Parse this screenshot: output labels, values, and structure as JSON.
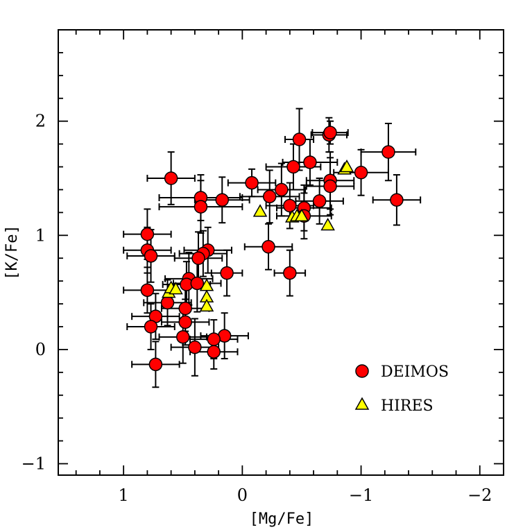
{
  "chart_data": {
    "type": "scatter",
    "title": "",
    "xlabel": "[Mg/Fe]",
    "ylabel": "[K/Fe]",
    "xlim": [
      1.55,
      -2.2
    ],
    "ylim": [
      -1.1,
      2.8
    ],
    "x_ticks": [
      1,
      0,
      -1,
      -2
    ],
    "x_tick_labels": [
      "1",
      "0",
      "−1",
      "−2"
    ],
    "y_ticks": [
      -1,
      0,
      1,
      2
    ],
    "y_tick_labels": [
      "−1",
      "0",
      "1",
      "2"
    ],
    "grid": false,
    "legend_position": "bottom-right",
    "series": [
      {
        "name": "DEIMOS",
        "marker": "circle",
        "color": "#ff0000",
        "points": [
          {
            "x": -0.73,
            "y": 1.88,
            "xerr": 0.15,
            "yerr": 0.15
          },
          {
            "x": -0.74,
            "y": 1.9,
            "xerr": 0.15,
            "yerr": 0.1
          },
          {
            "x": -0.48,
            "y": 1.84,
            "xerr": 0.12,
            "yerr": 0.27
          },
          {
            "x": -1.23,
            "y": 1.73,
            "xerr": 0.23,
            "yerr": 0.25
          },
          {
            "x": -0.57,
            "y": 1.64,
            "xerr": 0.23,
            "yerr": 0.2
          },
          {
            "x": -0.43,
            "y": 1.6,
            "xerr": 0.23,
            "yerr": 0.2
          },
          {
            "x": -1.0,
            "y": 1.55,
            "xerr": 0.23,
            "yerr": 0.2
          },
          {
            "x": -0.74,
            "y": 1.48,
            "xerr": 0.2,
            "yerr": 0.25
          },
          {
            "x": -0.74,
            "y": 1.43,
            "xerr": 0.2,
            "yerr": 0.25
          },
          {
            "x": 0.6,
            "y": 1.5,
            "xerr": 0.2,
            "yerr": 0.23
          },
          {
            "x": -0.08,
            "y": 1.46,
            "xerr": 0.2,
            "yerr": 0.12
          },
          {
            "x": -0.33,
            "y": 1.4,
            "xerr": 0.2,
            "yerr": 0.23
          },
          {
            "x": 0.35,
            "y": 1.33,
            "xerr": 0.35,
            "yerr": 0.2
          },
          {
            "x": -0.23,
            "y": 1.34,
            "xerr": 0.25,
            "yerr": 0.23
          },
          {
            "x": 0.17,
            "y": 1.31,
            "xerr": 0.23,
            "yerr": 0.2
          },
          {
            "x": -1.3,
            "y": 1.31,
            "xerr": 0.2,
            "yerr": 0.22
          },
          {
            "x": -0.65,
            "y": 1.3,
            "xerr": 0.2,
            "yerr": 0.2
          },
          {
            "x": -0.4,
            "y": 1.26,
            "xerr": 0.2,
            "yerr": 0.2
          },
          {
            "x": 0.35,
            "y": 1.25,
            "xerr": 0.35,
            "yerr": 0.23
          },
          {
            "x": -0.52,
            "y": 1.24,
            "xerr": 0.23,
            "yerr": 0.2
          },
          {
            "x": -0.52,
            "y": 1.17,
            "xerr": 0.23,
            "yerr": 0.2
          },
          {
            "x": 0.8,
            "y": 1.01,
            "xerr": 0.2,
            "yerr": 0.22
          },
          {
            "x": -0.22,
            "y": 0.9,
            "xerr": 0.2,
            "yerr": 0.2
          },
          {
            "x": 0.8,
            "y": 0.87,
            "xerr": 0.2,
            "yerr": 0.2
          },
          {
            "x": 0.29,
            "y": 0.87,
            "xerr": 0.2,
            "yerr": 0.2
          },
          {
            "x": 0.33,
            "y": 0.84,
            "xerr": 0.2,
            "yerr": 0.2
          },
          {
            "x": 0.77,
            "y": 0.82,
            "xerr": 0.2,
            "yerr": 0.23
          },
          {
            "x": 0.37,
            "y": 0.8,
            "xerr": 0.2,
            "yerr": 0.23
          },
          {
            "x": 0.13,
            "y": 0.67,
            "xerr": 0.13,
            "yerr": 0.2
          },
          {
            "x": -0.4,
            "y": 0.67,
            "xerr": 0.13,
            "yerr": 0.2
          },
          {
            "x": 0.45,
            "y": 0.62,
            "xerr": 0.2,
            "yerr": 0.23
          },
          {
            "x": 0.47,
            "y": 0.57,
            "xerr": 0.2,
            "yerr": 0.2
          },
          {
            "x": 0.38,
            "y": 0.58,
            "xerr": 0.2,
            "yerr": 0.25
          },
          {
            "x": 0.8,
            "y": 0.52,
            "xerr": 0.2,
            "yerr": 0.2
          },
          {
            "x": 0.63,
            "y": 0.41,
            "xerr": 0.2,
            "yerr": 0.2
          },
          {
            "x": 0.48,
            "y": 0.36,
            "xerr": 0.2,
            "yerr": 0.2
          },
          {
            "x": 0.73,
            "y": 0.29,
            "xerr": 0.2,
            "yerr": 0.2
          },
          {
            "x": 0.48,
            "y": 0.24,
            "xerr": 0.2,
            "yerr": 0.2
          },
          {
            "x": 0.77,
            "y": 0.2,
            "xerr": 0.2,
            "yerr": 0.2
          },
          {
            "x": 0.15,
            "y": 0.12,
            "xerr": 0.2,
            "yerr": 0.2
          },
          {
            "x": 0.5,
            "y": 0.11,
            "xerr": 0.2,
            "yerr": 0.23
          },
          {
            "x": 0.24,
            "y": 0.09,
            "xerr": 0.2,
            "yerr": 0.17
          },
          {
            "x": 0.4,
            "y": 0.02,
            "xerr": 0.2,
            "yerr": 0.25
          },
          {
            "x": 0.24,
            "y": -0.02,
            "xerr": 0.2,
            "yerr": 0.15
          },
          {
            "x": 0.73,
            "y": -0.13,
            "xerr": 0.2,
            "yerr": 0.2
          }
        ]
      },
      {
        "name": "HIRES",
        "marker": "triangle",
        "color": "#ffff00",
        "points": [
          {
            "x": -0.86,
            "y": 1.58
          },
          {
            "x": -0.88,
            "y": 1.6
          },
          {
            "x": -0.15,
            "y": 1.21
          },
          {
            "x": -0.42,
            "y": 1.16
          },
          {
            "x": -0.46,
            "y": 1.17
          },
          {
            "x": -0.5,
            "y": 1.17
          },
          {
            "x": -0.72,
            "y": 1.09
          },
          {
            "x": 0.62,
            "y": 0.5
          },
          {
            "x": 0.6,
            "y": 0.54
          },
          {
            "x": 0.56,
            "y": 0.53
          },
          {
            "x": 0.3,
            "y": 0.56
          },
          {
            "x": 0.3,
            "y": 0.46
          },
          {
            "x": 0.3,
            "y": 0.38
          }
        ]
      }
    ]
  }
}
